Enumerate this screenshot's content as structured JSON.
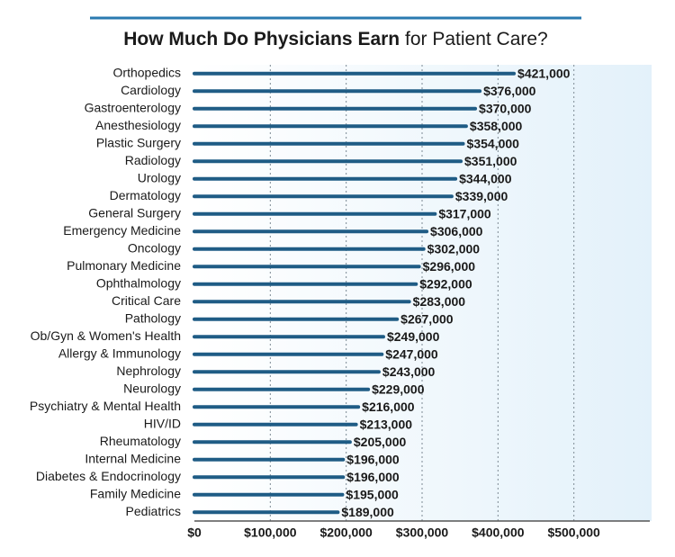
{
  "chart_data": {
    "type": "hbar",
    "title": {
      "bold": "How Much Do Physicians Earn",
      "regular": "for Patient Care?"
    },
    "categories": [
      "Orthopedics",
      "Cardiology",
      "Gastroenterology",
      "Anesthesiology",
      "Plastic Surgery",
      "Radiology",
      "Urology",
      "Dermatology",
      "General Surgery",
      "Emergency Medicine",
      "Oncology",
      "Pulmonary Medicine",
      "Ophthalmology",
      "Critical Care",
      "Pathology",
      "Ob/Gyn & Women's Health",
      "Allergy & Immunology",
      "Nephrology",
      "Neurology",
      "Psychiatry & Mental Health",
      "HIV/ID",
      "Rheumatology",
      "Internal Medicine",
      "Diabetes & Endocrinology",
      "Family Medicine",
      "Pediatrics"
    ],
    "values": [
      421000,
      376000,
      370000,
      358000,
      354000,
      351000,
      344000,
      339000,
      317000,
      306000,
      302000,
      296000,
      292000,
      283000,
      267000,
      249000,
      247000,
      243000,
      229000,
      216000,
      213000,
      205000,
      196000,
      196000,
      195000,
      189000
    ],
    "value_labels": [
      "$421,000",
      "$376,000",
      "$370,000",
      "$358,000",
      "$354,000",
      "$351,000",
      "$344,000",
      "$339,000",
      "$317,000",
      "$306,000",
      "$302,000",
      "$296,000",
      "$292,000",
      "$283,000",
      "$267,000",
      "$249,000",
      "$247,000",
      "$243,000",
      "$229,000",
      "$216,000",
      "$213,000",
      "$205,000",
      "$196,000",
      "$196,000",
      "$195,000",
      "$189,000"
    ],
    "color": "#1f5c85",
    "xlim": [
      0,
      600000
    ],
    "xticks": [
      {
        "value": 0,
        "label": "$0"
      },
      {
        "value": 100000,
        "label": "$100,000"
      },
      {
        "value": 200000,
        "label": "$200,000"
      },
      {
        "value": 300000,
        "label": "$300,000"
      },
      {
        "value": 400000,
        "label": "$400,000"
      },
      {
        "value": 500000,
        "label": "$500,000"
      }
    ],
    "grid": true
  }
}
